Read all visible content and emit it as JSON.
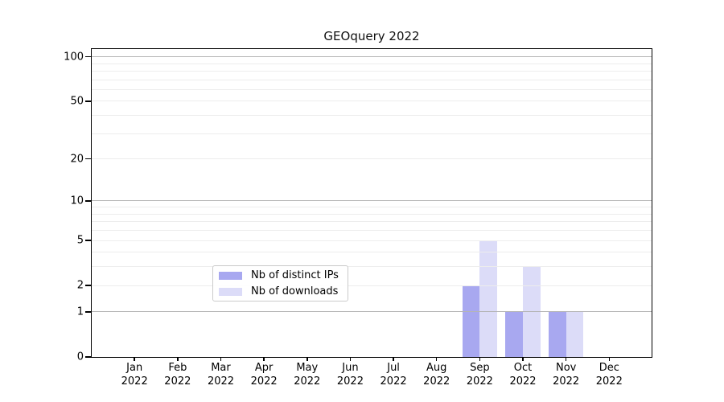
{
  "chart_data": {
    "type": "bar",
    "title": "GEOquery 2022",
    "categories": [
      {
        "line1": "Jan",
        "line2": "2022"
      },
      {
        "line1": "Feb",
        "line2": "2022"
      },
      {
        "line1": "Mar",
        "line2": "2022"
      },
      {
        "line1": "Apr",
        "line2": "2022"
      },
      {
        "line1": "May",
        "line2": "2022"
      },
      {
        "line1": "Jun",
        "line2": "2022"
      },
      {
        "line1": "Jul",
        "line2": "2022"
      },
      {
        "line1": "Aug",
        "line2": "2022"
      },
      {
        "line1": "Sep",
        "line2": "2022"
      },
      {
        "line1": "Oct",
        "line2": "2022"
      },
      {
        "line1": "Nov",
        "line2": "2022"
      },
      {
        "line1": "Dec",
        "line2": "2022"
      }
    ],
    "series": [
      {
        "name": "Nb of distinct IPs",
        "color": "#a8a8f0",
        "values": [
          0,
          0,
          0,
          0,
          0,
          0,
          0,
          0,
          2,
          1,
          1,
          0
        ]
      },
      {
        "name": "Nb of downloads",
        "color": "#dcdcf8",
        "values": [
          0,
          0,
          0,
          0,
          0,
          0,
          0,
          0,
          5,
          3,
          1,
          0
        ]
      }
    ],
    "y_axis": {
      "scale": "log1p",
      "tick_values": [
        0,
        1,
        2,
        5,
        10,
        20,
        50,
        100
      ],
      "ylim": [
        0,
        112
      ]
    },
    "gridlines": {
      "major_values": [
        1,
        10,
        100
      ],
      "minor_values": [
        2,
        3,
        4,
        5,
        6,
        7,
        8,
        9,
        20,
        30,
        40,
        50,
        60,
        70,
        80,
        90
      ],
      "major_color": "#b5b5b5",
      "minor_color": "#ededed"
    },
    "legend": {
      "position": "lower center"
    },
    "axis_color": "#000000",
    "background_color": "#ffffff"
  }
}
